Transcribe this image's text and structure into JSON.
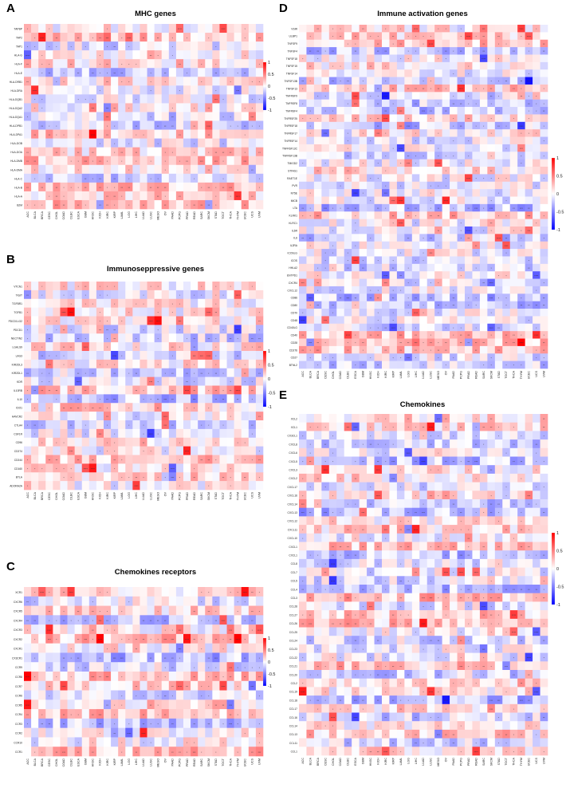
{
  "colors": {
    "low": "#0000ff",
    "mid": "#ffffff",
    "high": "#ff0000"
  },
  "cancer_types": [
    "ACC",
    "BLCA",
    "BRCA",
    "CESC",
    "CHOL",
    "COAD",
    "DLBC",
    "ESCA",
    "GBM",
    "HNSC",
    "KICH",
    "KIRC",
    "KIRP",
    "LAML",
    "LGG",
    "LIHC",
    "LUAD",
    "LUSC",
    "MESO",
    "OV",
    "PAAD",
    "PCPG",
    "PRAD",
    "READ",
    "SARC",
    "SKCM",
    "STAD",
    "TGCT",
    "THCA",
    "THYM",
    "UCEC",
    "UCS",
    "UVM"
  ],
  "chart_data": [
    {
      "type": "heatmap",
      "panel": "A",
      "title": "MHC genes",
      "rows": [
        "TAPBP",
        "TAP2",
        "TAP1",
        "HLA-G",
        "HLA-F",
        "HLA-E",
        "HLA-DRB1",
        "HLA-DRA",
        "HLA-DQB1",
        "HLA-DQA2",
        "HLA-DQA1",
        "HLA-DPB1",
        "HLA-DPA1",
        "HLA-DOB",
        "HLA-DOA",
        "HLA-DMB",
        "HLA-DMA",
        "HLA-C",
        "HLA-B",
        "HLA-A",
        "B2M"
      ],
      "legend_ticks": [
        1,
        0.5,
        0,
        -0.5,
        -1
      ],
      "value_range": [
        -1,
        1
      ]
    },
    {
      "type": "heatmap",
      "panel": "B",
      "title": "Immunoseppressive genes",
      "rows": [
        "VTCN1",
        "TIGIT",
        "TGFBR1",
        "TGFB1",
        "PDCD1LG2",
        "PDCD1",
        "NECTIN2",
        "LGALS9",
        "LAG3",
        "KIR2DL3",
        "KIR2DL1",
        "KDR",
        "IL10RB",
        "IL10",
        "IDO1",
        "HAVCR2",
        "CTLA4",
        "CSF1R",
        "CD96",
        "CD274",
        "CD244",
        "CD160",
        "BTLA",
        "ADORA2A"
      ],
      "legend_ticks": [
        1,
        0.5,
        0,
        -0.5,
        -1
      ],
      "value_range": [
        -1,
        1
      ]
    },
    {
      "type": "heatmap",
      "panel": "C",
      "title": "Chemokines receptors",
      "rows": [
        "XCR1",
        "CXCR6",
        "CXCR5",
        "CXCR4",
        "CXCR3",
        "CXCR2",
        "CXCR1",
        "CX3CR1",
        "CCR9",
        "CCR8",
        "CCR7",
        "CCR6",
        "CCR5",
        "CCR4",
        "CCR3",
        "CCR2",
        "CCR10",
        "CCR1"
      ],
      "legend_ticks": [
        1,
        0.5,
        0,
        -0.5,
        -1
      ],
      "value_range": [
        -1,
        1
      ]
    },
    {
      "type": "heatmap",
      "panel": "D",
      "title": "Immune activation genes",
      "rows": [
        "VSIR",
        "ULBP1",
        "TNFSF9",
        "TNFSF4",
        "TNFSF18",
        "TNFSF15",
        "TNFSF14",
        "TNFSF13B",
        "TNFSF13",
        "TNFRSF9",
        "TNFRSF8",
        "TNFRSF4",
        "TNFRSF25",
        "TNFRSF18",
        "TNFRSF17",
        "TNFRSF14",
        "TNFRSF13C",
        "TNFRSF13B",
        "TMIGD2",
        "STING1",
        "RAET1E",
        "PVR",
        "NT5E",
        "MICB",
        "LTA",
        "KLRK1",
        "KLRC1",
        "IL6R",
        "IL6",
        "IL2RA",
        "ICOSLG",
        "ICOS",
        "HHLA2",
        "ENTPD1",
        "CXCR4",
        "CXCL12",
        "CD86",
        "CD80",
        "CD70",
        "CD48",
        "CD40LG",
        "CD40",
        "CD28",
        "CD276",
        "CD27",
        "BTNL2"
      ],
      "legend_ticks": [
        1,
        0.5,
        0,
        -0.5,
        -1
      ],
      "value_range": [
        -1,
        1
      ]
    },
    {
      "type": "heatmap",
      "panel": "E",
      "title": "Chemokines",
      "rows": [
        "XCL2",
        "XCL1",
        "CX3CL1",
        "CXCL8",
        "CXCL6",
        "CXCL5",
        "CXCL3",
        "CXCL2",
        "CXCL17",
        "CXCL16",
        "CXCL14",
        "CXCL13",
        "CXCL12",
        "CXCL11",
        "CXCL10",
        "CXCL1",
        "CXCL1",
        "CCL8",
        "CCL7",
        "CCL5",
        "CCL4",
        "CCL3",
        "CCL28",
        "CCL27",
        "CCL26",
        "CCL25",
        "CCL24",
        "CCL23",
        "CCL22",
        "CCL21",
        "CCL20",
        "CCL2",
        "CCL19",
        "CCL18",
        "CCL17",
        "CCL16",
        "CCL14",
        "CCL13",
        "CCL11",
        "CCL1"
      ],
      "legend_ticks": [
        1,
        0.5,
        0,
        -0.5,
        -1
      ],
      "value_range": [
        -1,
        1
      ]
    }
  ]
}
